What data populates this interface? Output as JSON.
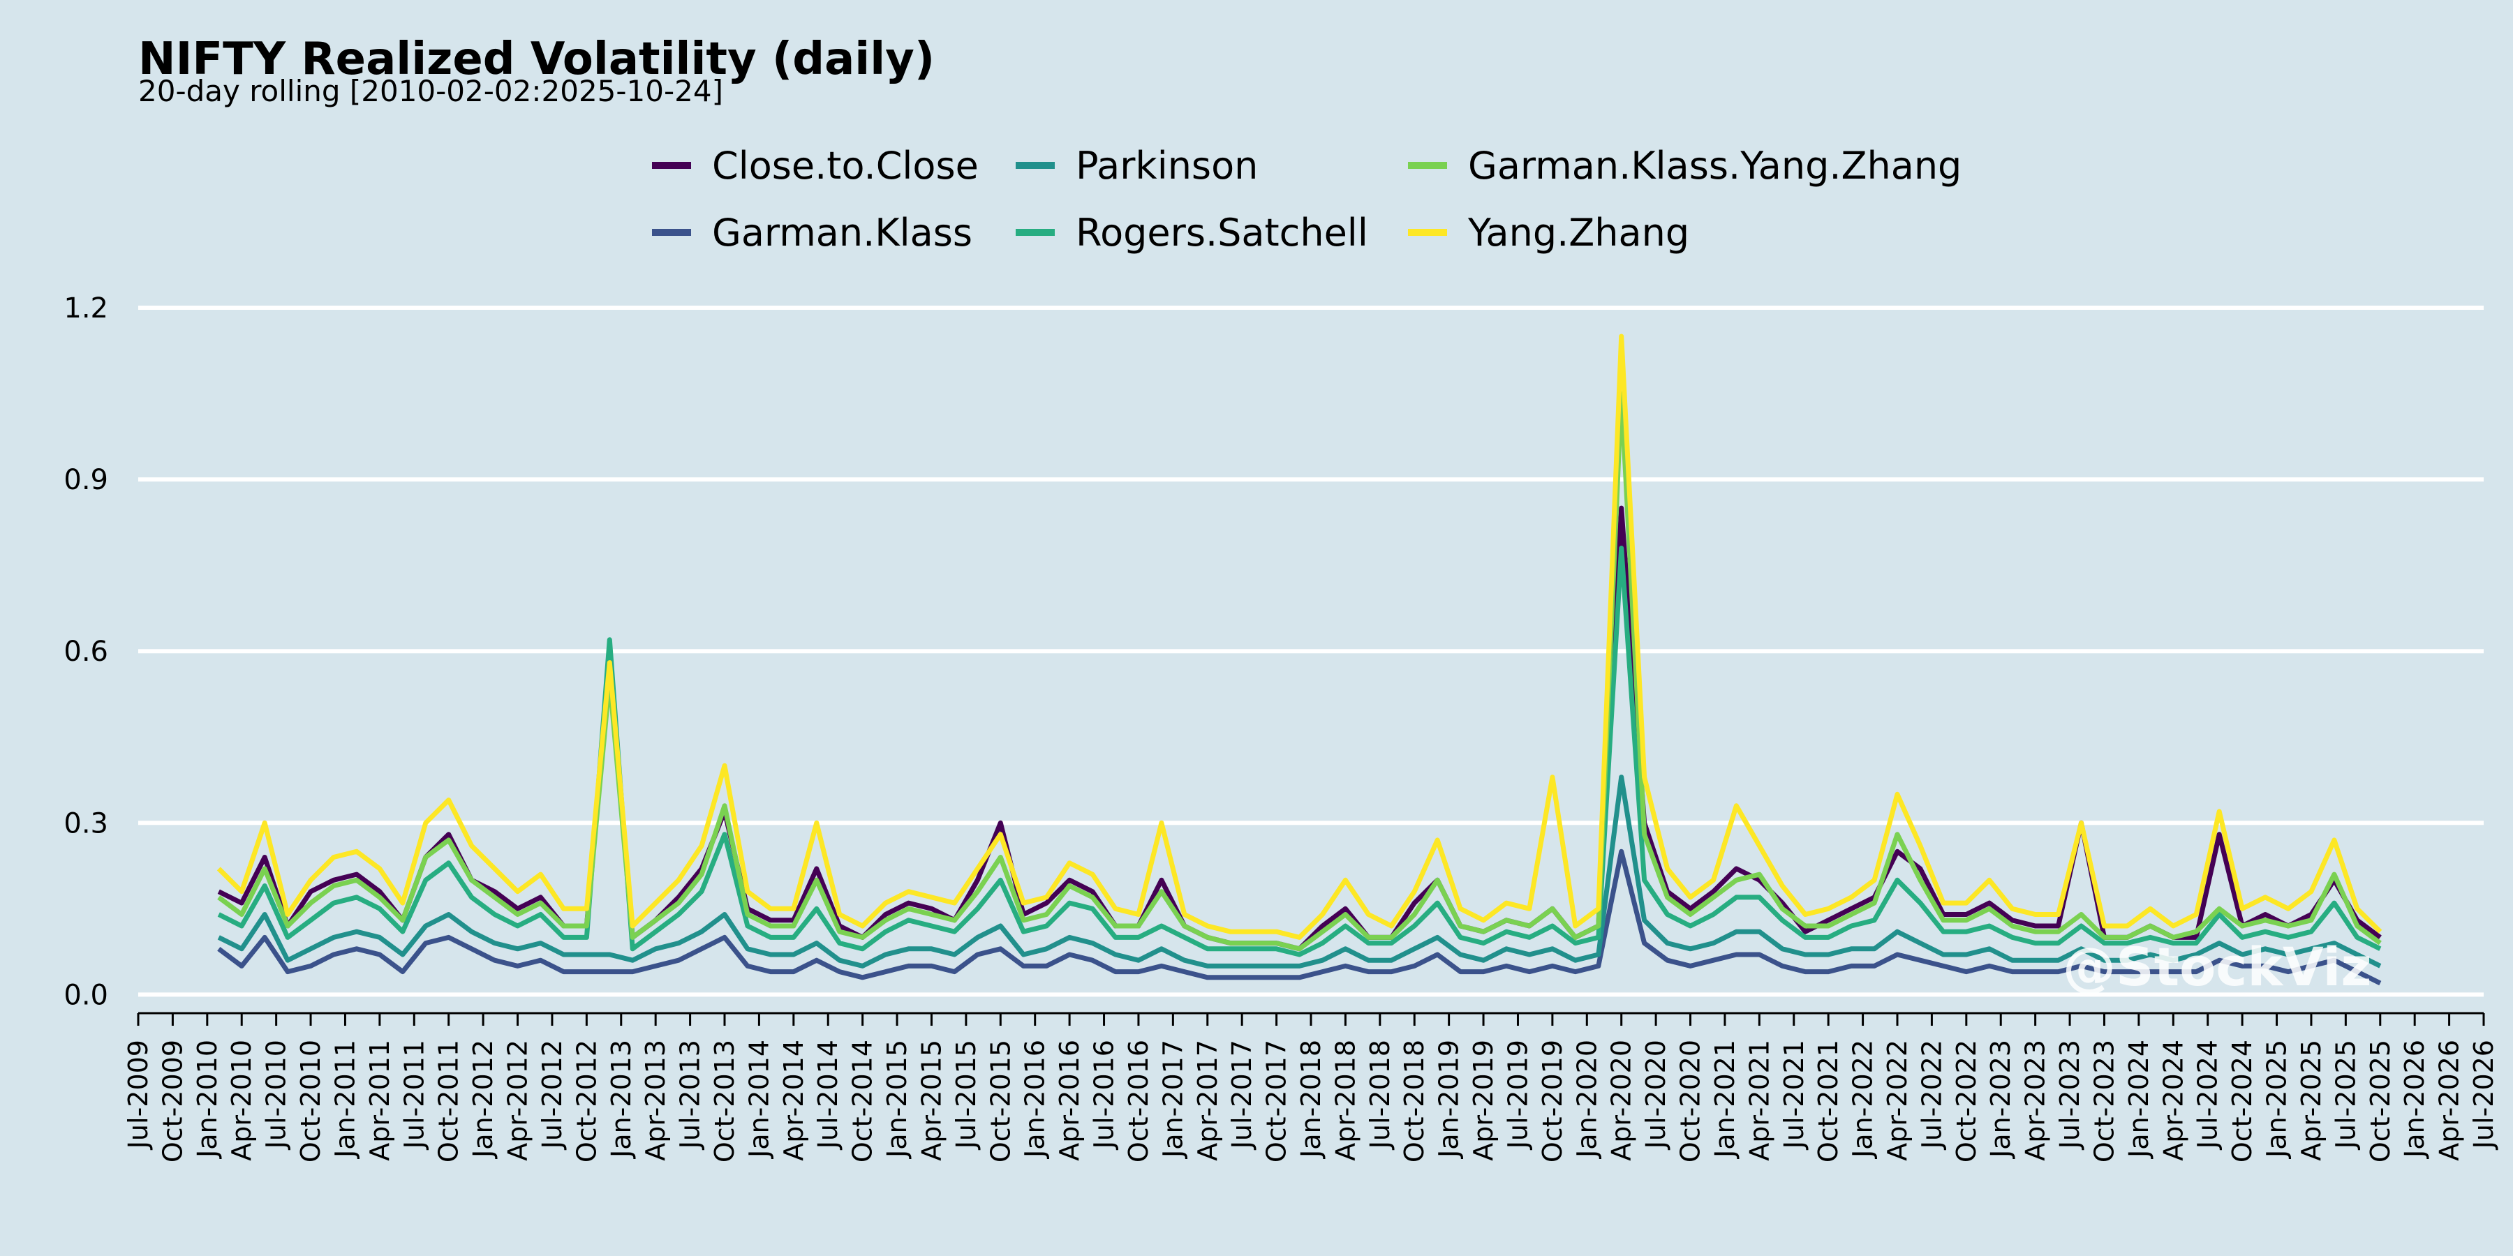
{
  "colors": {
    "background": "#d6e5ec",
    "grid": "#ffffff",
    "axis": "#000000"
  },
  "watermark": "@StockViz",
  "chart_data": {
    "type": "line",
    "title": "NIFTY Realized Volatility (daily)",
    "subtitle": "20-day rolling [2010-02-02:2025-10-24]",
    "xlabel": "",
    "ylabel": "",
    "ylim": [
      -0.03,
      1.25
    ],
    "yticks": [
      0.0,
      0.3,
      0.6,
      0.9,
      1.2
    ],
    "ytick_labels": [
      "0.0",
      "0.3",
      "0.6",
      "0.9",
      "1.2"
    ],
    "xlim": [
      "2009-07-01",
      "2026-07-01"
    ],
    "xtick_labels": [
      "Jul-2009",
      "Oct-2009",
      "Jan-2010",
      "Apr-2010",
      "Jul-2010",
      "Oct-2010",
      "Jan-2011",
      "Apr-2011",
      "Jul-2011",
      "Oct-2011",
      "Jan-2012",
      "Apr-2012",
      "Jul-2012",
      "Oct-2012",
      "Jan-2013",
      "Apr-2013",
      "Jul-2013",
      "Oct-2013",
      "Jan-2014",
      "Apr-2014",
      "Jul-2014",
      "Oct-2014",
      "Jan-2015",
      "Apr-2015",
      "Jul-2015",
      "Oct-2015",
      "Jan-2016",
      "Apr-2016",
      "Jul-2016",
      "Oct-2016",
      "Jan-2017",
      "Apr-2017",
      "Jul-2017",
      "Oct-2017",
      "Jan-2018",
      "Apr-2018",
      "Jul-2018",
      "Oct-2018",
      "Jan-2019",
      "Apr-2019",
      "Jul-2019",
      "Oct-2019",
      "Jan-2020",
      "Apr-2020",
      "Jul-2020",
      "Oct-2020",
      "Jan-2021",
      "Apr-2021",
      "Jul-2021",
      "Oct-2021",
      "Jan-2022",
      "Apr-2022",
      "Jul-2022",
      "Oct-2022",
      "Jan-2023",
      "Apr-2023",
      "Jul-2023",
      "Oct-2023",
      "Jan-2024",
      "Apr-2024",
      "Jul-2024",
      "Oct-2024",
      "Jan-2025",
      "Apr-2025",
      "Jul-2025",
      "Oct-2025",
      "Jan-2026",
      "Apr-2026",
      "Jul-2026"
    ],
    "grid": "horizontal",
    "legend": {
      "position": "top-center",
      "columns": 3
    },
    "x": [
      "2010-02",
      "2010-04",
      "2010-06",
      "2010-08",
      "2010-10",
      "2010-12",
      "2011-02",
      "2011-04",
      "2011-06",
      "2011-08",
      "2011-10",
      "2011-12",
      "2012-02",
      "2012-04",
      "2012-06",
      "2012-08",
      "2012-10",
      "2012-12",
      "2013-02",
      "2013-04",
      "2013-06",
      "2013-08",
      "2013-10",
      "2013-12",
      "2014-02",
      "2014-04",
      "2014-06",
      "2014-08",
      "2014-10",
      "2014-12",
      "2015-02",
      "2015-04",
      "2015-06",
      "2015-08",
      "2015-10",
      "2015-12",
      "2016-02",
      "2016-04",
      "2016-06",
      "2016-08",
      "2016-10",
      "2016-12",
      "2017-02",
      "2017-04",
      "2017-06",
      "2017-08",
      "2017-10",
      "2017-12",
      "2018-02",
      "2018-04",
      "2018-06",
      "2018-08",
      "2018-10",
      "2018-12",
      "2019-02",
      "2019-04",
      "2019-06",
      "2019-08",
      "2019-10",
      "2019-12",
      "2020-02",
      "2020-04",
      "2020-06",
      "2020-08",
      "2020-10",
      "2020-12",
      "2021-02",
      "2021-04",
      "2021-06",
      "2021-08",
      "2021-10",
      "2021-12",
      "2022-02",
      "2022-04",
      "2022-06",
      "2022-08",
      "2022-10",
      "2022-12",
      "2023-02",
      "2023-04",
      "2023-06",
      "2023-08",
      "2023-10",
      "2023-12",
      "2024-02",
      "2024-04",
      "2024-06",
      "2024-08",
      "2024-10",
      "2024-12",
      "2025-02",
      "2025-04",
      "2025-06",
      "2025-08",
      "2025-10"
    ],
    "series": [
      {
        "name": "Close.to.Close",
        "color": "#440154",
        "values": [
          0.18,
          0.16,
          0.24,
          0.12,
          0.18,
          0.2,
          0.21,
          0.18,
          0.13,
          0.24,
          0.28,
          0.2,
          0.18,
          0.15,
          0.17,
          0.12,
          0.12,
          0.58,
          0.1,
          0.13,
          0.17,
          0.22,
          0.32,
          0.15,
          0.13,
          0.13,
          0.22,
          0.12,
          0.1,
          0.14,
          0.16,
          0.15,
          0.13,
          0.2,
          0.3,
          0.14,
          0.16,
          0.2,
          0.18,
          0.12,
          0.12,
          0.2,
          0.12,
          0.1,
          0.09,
          0.09,
          0.09,
          0.08,
          0.12,
          0.15,
          0.1,
          0.1,
          0.16,
          0.2,
          0.12,
          0.11,
          0.13,
          0.12,
          0.15,
          0.1,
          0.12,
          0.85,
          0.3,
          0.18,
          0.15,
          0.18,
          0.22,
          0.2,
          0.16,
          0.11,
          0.13,
          0.15,
          0.17,
          0.25,
          0.22,
          0.14,
          0.14,
          0.16,
          0.13,
          0.12,
          0.12,
          0.3,
          0.1,
          0.1,
          0.12,
          0.1,
          0.1,
          0.28,
          0.12,
          0.14,
          0.12,
          0.14,
          0.2,
          0.13,
          0.1
        ]
      },
      {
        "name": "Garman.Klass",
        "color": "#3b528b",
        "values": [
          0.08,
          0.05,
          0.1,
          0.04,
          0.05,
          0.07,
          0.08,
          0.07,
          0.04,
          0.09,
          0.1,
          0.08,
          0.06,
          0.05,
          0.06,
          0.04,
          0.04,
          0.04,
          0.04,
          0.05,
          0.06,
          0.08,
          0.1,
          0.05,
          0.04,
          0.04,
          0.06,
          0.04,
          0.03,
          0.04,
          0.05,
          0.05,
          0.04,
          0.07,
          0.08,
          0.05,
          0.05,
          0.07,
          0.06,
          0.04,
          0.04,
          0.05,
          0.04,
          0.03,
          0.03,
          0.03,
          0.03,
          0.03,
          0.04,
          0.05,
          0.04,
          0.04,
          0.05,
          0.07,
          0.04,
          0.04,
          0.05,
          0.04,
          0.05,
          0.04,
          0.05,
          0.25,
          0.09,
          0.06,
          0.05,
          0.06,
          0.07,
          0.07,
          0.05,
          0.04,
          0.04,
          0.05,
          0.05,
          0.07,
          0.06,
          0.05,
          0.04,
          0.05,
          0.04,
          0.04,
          0.04,
          0.05,
          0.04,
          0.04,
          0.04,
          0.04,
          0.04,
          0.06,
          0.05,
          0.05,
          0.04,
          0.05,
          0.06,
          0.04,
          0.02
        ]
      },
      {
        "name": "Parkinson",
        "color": "#21908c",
        "values": [
          0.1,
          0.08,
          0.14,
          0.06,
          0.08,
          0.1,
          0.11,
          0.1,
          0.07,
          0.12,
          0.14,
          0.11,
          0.09,
          0.08,
          0.09,
          0.07,
          0.07,
          0.07,
          0.06,
          0.08,
          0.09,
          0.11,
          0.14,
          0.08,
          0.07,
          0.07,
          0.09,
          0.06,
          0.05,
          0.07,
          0.08,
          0.08,
          0.07,
          0.1,
          0.12,
          0.07,
          0.08,
          0.1,
          0.09,
          0.07,
          0.06,
          0.08,
          0.06,
          0.05,
          0.05,
          0.05,
          0.05,
          0.05,
          0.06,
          0.08,
          0.06,
          0.06,
          0.08,
          0.1,
          0.07,
          0.06,
          0.08,
          0.07,
          0.08,
          0.06,
          0.07,
          0.38,
          0.13,
          0.09,
          0.08,
          0.09,
          0.11,
          0.11,
          0.08,
          0.07,
          0.07,
          0.08,
          0.08,
          0.11,
          0.09,
          0.07,
          0.07,
          0.08,
          0.06,
          0.06,
          0.06,
          0.08,
          0.06,
          0.06,
          0.07,
          0.06,
          0.07,
          0.09,
          0.07,
          0.08,
          0.07,
          0.08,
          0.09,
          0.07,
          0.05
        ]
      },
      {
        "name": "Rogers.Satchell",
        "color": "#27ad81",
        "values": [
          0.14,
          0.12,
          0.19,
          0.1,
          0.13,
          0.16,
          0.17,
          0.15,
          0.11,
          0.2,
          0.23,
          0.17,
          0.14,
          0.12,
          0.14,
          0.1,
          0.1,
          0.62,
          0.08,
          0.11,
          0.14,
          0.18,
          0.28,
          0.12,
          0.1,
          0.1,
          0.15,
          0.09,
          0.08,
          0.11,
          0.13,
          0.12,
          0.11,
          0.15,
          0.2,
          0.11,
          0.12,
          0.16,
          0.15,
          0.1,
          0.1,
          0.12,
          0.1,
          0.08,
          0.08,
          0.08,
          0.08,
          0.07,
          0.09,
          0.12,
          0.09,
          0.09,
          0.12,
          0.16,
          0.1,
          0.09,
          0.11,
          0.1,
          0.12,
          0.09,
          0.1,
          0.78,
          0.2,
          0.14,
          0.12,
          0.14,
          0.17,
          0.17,
          0.13,
          0.1,
          0.1,
          0.12,
          0.13,
          0.2,
          0.16,
          0.11,
          0.11,
          0.12,
          0.1,
          0.09,
          0.09,
          0.12,
          0.09,
          0.09,
          0.1,
          0.09,
          0.09,
          0.14,
          0.1,
          0.11,
          0.1,
          0.11,
          0.16,
          0.1,
          0.08
        ]
      },
      {
        "name": "Garman.Klass.Yang.Zhang",
        "color": "#7ad151",
        "values": [
          0.17,
          0.14,
          0.22,
          0.12,
          0.16,
          0.19,
          0.2,
          0.17,
          0.13,
          0.24,
          0.27,
          0.2,
          0.17,
          0.14,
          0.16,
          0.12,
          0.12,
          0.55,
          0.1,
          0.13,
          0.16,
          0.21,
          0.33,
          0.14,
          0.12,
          0.12,
          0.2,
          0.11,
          0.1,
          0.13,
          0.15,
          0.14,
          0.13,
          0.18,
          0.24,
          0.13,
          0.14,
          0.19,
          0.17,
          0.12,
          0.12,
          0.18,
          0.12,
          0.1,
          0.09,
          0.09,
          0.09,
          0.08,
          0.11,
          0.14,
          0.1,
          0.1,
          0.14,
          0.2,
          0.12,
          0.11,
          0.13,
          0.12,
          0.15,
          0.1,
          0.12,
          1.05,
          0.28,
          0.17,
          0.14,
          0.17,
          0.2,
          0.21,
          0.15,
          0.12,
          0.12,
          0.14,
          0.16,
          0.28,
          0.2,
          0.13,
          0.13,
          0.15,
          0.12,
          0.11,
          0.11,
          0.14,
          0.1,
          0.1,
          0.12,
          0.1,
          0.11,
          0.15,
          0.12,
          0.13,
          0.12,
          0.13,
          0.21,
          0.12,
          0.09
        ]
      },
      {
        "name": "Yang.Zhang",
        "color": "#fde725",
        "values": [
          0.22,
          0.18,
          0.3,
          0.14,
          0.2,
          0.24,
          0.25,
          0.22,
          0.16,
          0.3,
          0.34,
          0.26,
          0.22,
          0.18,
          0.21,
          0.15,
          0.15,
          0.58,
          0.12,
          0.16,
          0.2,
          0.26,
          0.4,
          0.18,
          0.15,
          0.15,
          0.3,
          0.14,
          0.12,
          0.16,
          0.18,
          0.17,
          0.16,
          0.22,
          0.28,
          0.16,
          0.17,
          0.23,
          0.21,
          0.15,
          0.14,
          0.3,
          0.14,
          0.12,
          0.11,
          0.11,
          0.11,
          0.1,
          0.14,
          0.2,
          0.14,
          0.12,
          0.18,
          0.27,
          0.15,
          0.13,
          0.16,
          0.15,
          0.38,
          0.12,
          0.15,
          1.15,
          0.38,
          0.22,
          0.17,
          0.2,
          0.33,
          0.26,
          0.19,
          0.14,
          0.15,
          0.17,
          0.2,
          0.35,
          0.26,
          0.16,
          0.16,
          0.2,
          0.15,
          0.14,
          0.14,
          0.3,
          0.12,
          0.12,
          0.15,
          0.12,
          0.14,
          0.32,
          0.15,
          0.17,
          0.15,
          0.18,
          0.27,
          0.15,
          0.11
        ]
      }
    ]
  }
}
